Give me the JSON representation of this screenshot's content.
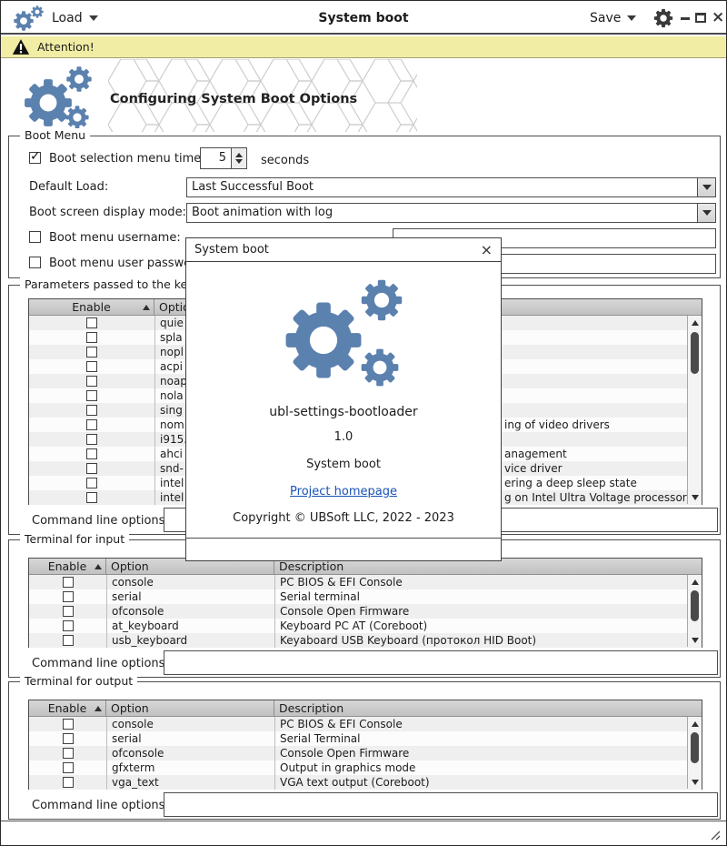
{
  "window": {
    "title": "System boot",
    "load_label": "Load",
    "save_label": "Save"
  },
  "banner": {
    "text": "Attention!"
  },
  "header": {
    "title": "Configuring System Boot Options"
  },
  "boot_menu": {
    "legend": "Boot Menu",
    "timer_label": "Boot selection menu timer",
    "timer_value": "5",
    "timer_unit": "seconds",
    "default_load_label": "Default Load:",
    "default_load_value": "Last Successful Boot",
    "display_mode_label": "Boot screen display mode:",
    "display_mode_value": "Boot animation with log",
    "username_label": "Boot menu username:",
    "username_value": "",
    "password_label": "Boot menu user password",
    "password_value": ""
  },
  "kernel_params": {
    "legend": "Parameters passed to the kernel",
    "columns": [
      "Enable",
      "Option",
      "Description"
    ],
    "rows": [
      {
        "option": "quie",
        "desc": ""
      },
      {
        "option": "spla",
        "desc": ""
      },
      {
        "option": "nopl",
        "desc": ""
      },
      {
        "option": "acpi",
        "desc": ""
      },
      {
        "option": "noap",
        "desc": ""
      },
      {
        "option": "nola",
        "desc": ""
      },
      {
        "option": "sing",
        "desc": ""
      },
      {
        "option": "nom",
        "desc": "ing of video drivers",
        "pad": true
      },
      {
        "option": "i915.",
        "desc": ""
      },
      {
        "option": "ahci",
        "desc": "anagement",
        "pad": true
      },
      {
        "option": "snd-",
        "desc": "vice driver",
        "pad": true
      },
      {
        "option": "intel",
        "desc": "ering a deep sleep state",
        "pad": true
      },
      {
        "option": "intel",
        "desc": "g on Intel Ultra Voltage processors",
        "pad": true
      }
    ],
    "cmdline_label": "Command line options:",
    "cmdline_value": ""
  },
  "terminal_input": {
    "legend": "Terminal for input",
    "columns": [
      "Enable",
      "Option",
      "Description"
    ],
    "rows": [
      {
        "option": "console",
        "desc": "PC BIOS & EFI Console"
      },
      {
        "option": "serial",
        "desc": "Serial terminal"
      },
      {
        "option": "ofconsole",
        "desc": "Console Open Firmware"
      },
      {
        "option": "at_keyboard",
        "desc": "Keyboard PC AT (Coreboot)"
      },
      {
        "option": "usb_keyboard",
        "desc": "Keyaboard USB Keyboard (протокол HID Boot)"
      }
    ],
    "cmdline_label": "Command line options:",
    "cmdline_value": ""
  },
  "terminal_output": {
    "legend": "Terminal for output",
    "columns": [
      "Enable",
      "Option",
      "Description"
    ],
    "rows": [
      {
        "option": "console",
        "desc": "PC BIOS & EFI Console"
      },
      {
        "option": "serial",
        "desc": "Serial Terminal"
      },
      {
        "option": "ofconsole",
        "desc": "Console Open Firmware"
      },
      {
        "option": "gfxterm",
        "desc": "Output in graphics mode"
      },
      {
        "option": "vga_text",
        "desc": "VGA text output (Coreboot)"
      }
    ],
    "cmdline_label": "Command line options:",
    "cmdline_value": ""
  },
  "dialog": {
    "title": "System boot",
    "close_glyph": "×",
    "app_name": "ubl-settings-bootloader",
    "version": "1.0",
    "description": "System boot",
    "link_label": "Project homepage",
    "copyright": "Copyright © UBSoft LLC, 2022 - 2023"
  },
  "colors": {
    "accent_gear_blue": "#5b81ae",
    "banner_bg": "#f1eda4",
    "link": "#1a53b5"
  }
}
